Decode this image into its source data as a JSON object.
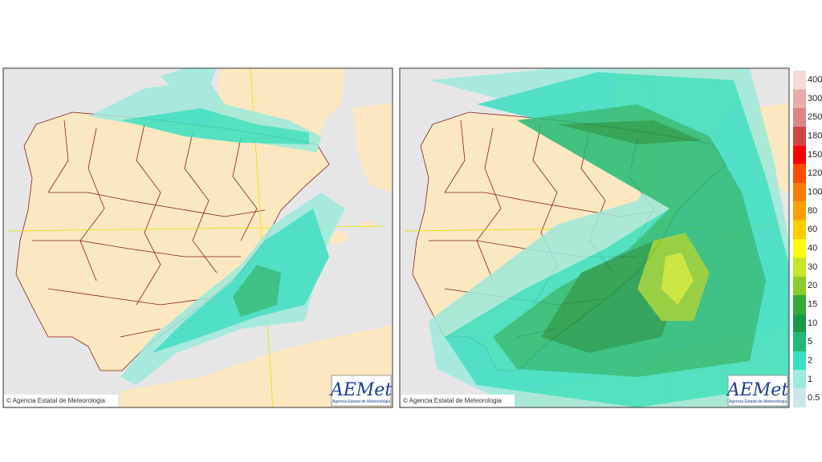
{
  "maps": [
    {
      "credit": "© Agencia Estatal de Meteorologia",
      "logo": {
        "name": "AEMet",
        "subtitle": "Agencia Estatal de Meteorologia"
      }
    },
    {
      "credit": "© Agencia Estatal de Meteorologia",
      "logo": {
        "name": "AEMet",
        "subtitle": "Agencia Estatal de Meteorologia"
      }
    }
  ],
  "legend": {
    "levels": [
      {
        "value": 400,
        "color": "#f5d8d8"
      },
      {
        "value": 300,
        "color": "#e8aaaa"
      },
      {
        "value": 250,
        "color": "#d98585"
      },
      {
        "value": 180,
        "color": "#d04545"
      },
      {
        "value": 150,
        "color": "#ff0000"
      },
      {
        "value": 120,
        "color": "#ff4a00"
      },
      {
        "value": 100,
        "color": "#ff7a00"
      },
      {
        "value": 80,
        "color": "#ffa000"
      },
      {
        "value": 60,
        "color": "#ffcc00"
      },
      {
        "value": 40,
        "color": "#ffff00"
      },
      {
        "value": 30,
        "color": "#c8e628"
      },
      {
        "value": 20,
        "color": "#8ccc2a"
      },
      {
        "value": 15,
        "color": "#36aa36"
      },
      {
        "value": 10,
        "color": "#179a48"
      },
      {
        "value": 5,
        "color": "#22bb77"
      },
      {
        "value": 2,
        "color": "#38e0c0"
      },
      {
        "value": 1,
        "color": "#9eeadc"
      },
      {
        "value": 0.5,
        "color": "#cfe6e8"
      }
    ]
  }
}
